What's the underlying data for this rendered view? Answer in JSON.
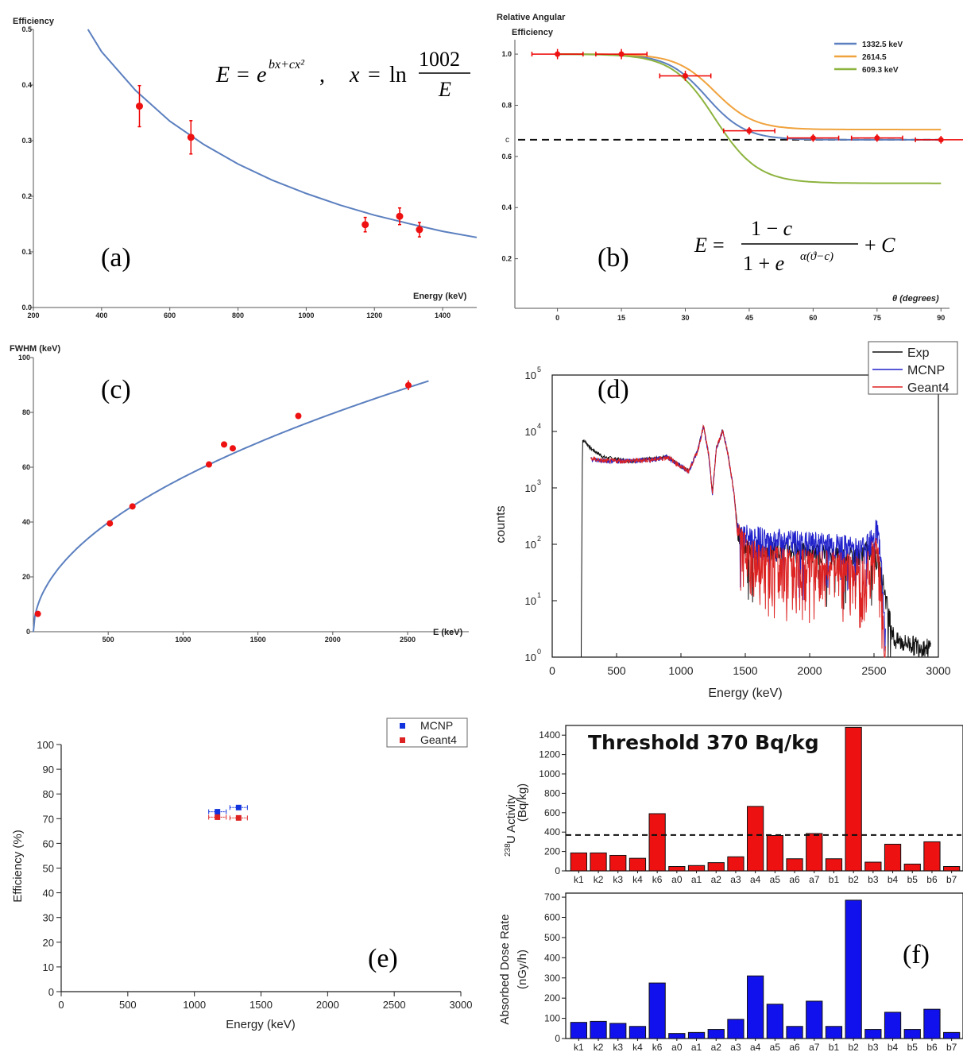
{
  "chart_data": [
    {
      "panel": "(a)",
      "type": "scatter",
      "xlabel": "Energy (keV)",
      "ylabel": "Efficiency",
      "xlim": [
        200,
        1500
      ],
      "ylim": [
        0,
        0.5
      ],
      "xticks": [
        "200",
        "400",
        "600",
        "800",
        "1000",
        "1200",
        "1400"
      ],
      "yticks": [
        "0.0",
        "0.1",
        "0.2",
        "0.3",
        "0.4",
        "0.5"
      ],
      "formula": "E = e^(bx+cx²),   x = ln (1002/E)",
      "points": [
        {
          "x": 511,
          "y": 0.362,
          "err": 0.037
        },
        {
          "x": 662,
          "y": 0.306,
          "err": 0.03
        },
        {
          "x": 1173,
          "y": 0.149,
          "err": 0.013
        },
        {
          "x": 1274,
          "y": 0.164,
          "err": 0.015
        },
        {
          "x": 1332,
          "y": 0.14,
          "err": 0.013
        }
      ],
      "fit": [
        [
          360,
          0.5
        ],
        [
          400,
          0.46
        ],
        [
          500,
          0.39
        ],
        [
          600,
          0.335
        ],
        [
          700,
          0.293
        ],
        [
          800,
          0.258
        ],
        [
          900,
          0.229
        ],
        [
          1000,
          0.205
        ],
        [
          1100,
          0.184
        ],
        [
          1200,
          0.166
        ],
        [
          1300,
          0.151
        ],
        [
          1400,
          0.137
        ],
        [
          1500,
          0.126
        ]
      ]
    },
    {
      "panel": "(b)",
      "type": "line",
      "title": "Relative Angular Efficiency",
      "title_lines": [
        "Relative Angular",
        "Efficiency"
      ],
      "xlabel": "θ (degrees)",
      "xlim": [
        -10,
        92
      ],
      "ylim": [
        0,
        1.05
      ],
      "xticks": [
        "0",
        "15",
        "30",
        "45",
        "60",
        "75",
        "90"
      ],
      "yticks": [
        "0.2",
        "0.4",
        "0.6",
        "0.8",
        "1.0"
      ],
      "c_label": "c",
      "c_value": 0.665,
      "formula_left": "E =",
      "formula_num": "1 − c",
      "formula_den": "1 + e^(α(ϑ−c))",
      "formula_right": "+ C",
      "series": [
        {
          "name": "1332.5 keV",
          "color": "#5b7fbf",
          "lo": 0.665,
          "mid": 35,
          "k": 0.22
        },
        {
          "name": "2614.5",
          "color": "#f0a23c",
          "lo": 0.705,
          "mid": 37,
          "k": 0.22
        },
        {
          "name": "609.3 keV",
          "color": "#8db33e",
          "lo": 0.495,
          "mid": 37,
          "k": 0.2
        }
      ],
      "points": [
        {
          "x": 0,
          "y": 1.0,
          "xerr": 3,
          "yerr": 0.02
        },
        {
          "x": 15,
          "y": 1.0,
          "xerr": 3,
          "yerr": 0.02
        },
        {
          "x": 30,
          "y": 0.915,
          "xerr": 3,
          "yerr": 0.02
        },
        {
          "x": 45,
          "y": 0.7,
          "xerr": 3,
          "yerr": 0.015
        },
        {
          "x": 60,
          "y": 0.672,
          "xerr": 3,
          "yerr": 0.015
        },
        {
          "x": 75,
          "y": 0.672,
          "xerr": 3,
          "yerr": 0.015
        },
        {
          "x": 90,
          "y": 0.665,
          "xerr": 3,
          "yerr": 0.015
        }
      ]
    },
    {
      "panel": "(c)",
      "type": "scatter",
      "xlabel": "E (keV)",
      "ylabel": "FWHM (keV)",
      "xlim": [
        0,
        2700
      ],
      "ylim": [
        0,
        100
      ],
      "xticks": [
        "500",
        "1000",
        "1500",
        "2000",
        "2500"
      ],
      "yticks": [
        "0",
        "20",
        "40",
        "60",
        "80",
        "100"
      ],
      "points": [
        {
          "x": 30,
          "y": 6.5
        },
        {
          "x": 511,
          "y": 39.5
        },
        {
          "x": 662,
          "y": 45.7
        },
        {
          "x": 1173,
          "y": 61.0
        },
        {
          "x": 1274,
          "y": 68.3
        },
        {
          "x": 1332,
          "y": 66.9
        },
        {
          "x": 1770,
          "y": 78.7
        },
        {
          "x": 2505,
          "y": 89.9,
          "err": 1.8
        }
      ],
      "fit_a": 1.78,
      "fit_p": 0.5,
      "fit_xmax": 2640
    },
    {
      "panel": "(d)",
      "type": "line",
      "xlabel": "Energy (keV)",
      "ylabel": "counts",
      "xlim": [
        0,
        3000
      ],
      "ylim_log": [
        1,
        100000
      ],
      "xticks": [
        "0",
        "500",
        "1000",
        "1500",
        "2000",
        "2500",
        "3000"
      ],
      "yticks": [
        "10",
        "10",
        "10",
        "10",
        "10",
        "10"
      ],
      "ytick_exp": [
        "0",
        "1",
        "2",
        "3",
        "4",
        "5"
      ],
      "legend": [
        "Exp",
        "MCNP",
        "Geant4"
      ],
      "colors": [
        "#111111",
        "#2222cc",
        "#dd2222"
      ],
      "shape": {
        "exp": [
          [
            225,
            1
          ],
          [
            235,
            7000
          ],
          [
            260,
            6500
          ],
          [
            300,
            5000
          ],
          [
            400,
            3500
          ],
          [
            600,
            3000
          ],
          [
            800,
            3300
          ],
          [
            900,
            3600
          ],
          [
            1000,
            2400
          ],
          [
            1060,
            2000
          ],
          [
            1130,
            4500
          ],
          [
            1175,
            13000
          ],
          [
            1215,
            4000
          ],
          [
            1245,
            800
          ],
          [
            1275,
            5000
          ],
          [
            1325,
            11000
          ],
          [
            1365,
            4000
          ],
          [
            1410,
            900
          ],
          [
            1440,
            200
          ],
          [
            1500,
            90
          ],
          [
            1800,
            80
          ],
          [
            2100,
            70
          ],
          [
            2300,
            60
          ],
          [
            2450,
            80
          ],
          [
            2510,
            60
          ],
          [
            2560,
            30
          ],
          [
            2620,
            5
          ],
          [
            2660,
            2
          ],
          [
            2940,
            1.5
          ]
        ],
        "sim": [
          [
            300,
            3300
          ],
          [
            400,
            3000
          ],
          [
            600,
            3000
          ],
          [
            800,
            3200
          ],
          [
            900,
            3500
          ],
          [
            1000,
            2400
          ],
          [
            1060,
            2000
          ],
          [
            1130,
            4500
          ],
          [
            1175,
            12500
          ],
          [
            1215,
            4000
          ],
          [
            1245,
            800
          ],
          [
            1275,
            5000
          ],
          [
            1325,
            10500
          ],
          [
            1365,
            4000
          ],
          [
            1410,
            900
          ],
          [
            1440,
            150
          ],
          [
            1600,
            130
          ],
          [
            1900,
            110
          ],
          [
            2200,
            100
          ],
          [
            2400,
            80
          ],
          [
            2480,
            150
          ],
          [
            2520,
            200
          ],
          [
            2550,
            80
          ],
          [
            2590,
            2
          ]
        ]
      }
    },
    {
      "panel": "(e)",
      "type": "scatter",
      "xlabel": "Energy (keV)",
      "ylabel": "Efficiency (%)",
      "xlim": [
        0,
        3000
      ],
      "ylim": [
        0,
        100
      ],
      "xticks": [
        "0",
        "500",
        "1000",
        "1500",
        "2000",
        "2500",
        "3000"
      ],
      "yticks": [
        "0",
        "10",
        "20",
        "30",
        "40",
        "50",
        "60",
        "70",
        "80",
        "90",
        "100"
      ],
      "legend": [
        "MCNP",
        "Geant4"
      ],
      "series": [
        {
          "name": "MCNP",
          "color": "#1133dd",
          "points": [
            [
              1173,
              72.8
            ],
            [
              1332,
              74.5
            ]
          ]
        },
        {
          "name": "Geant4",
          "color": "#dd2222",
          "points": [
            [
              1173,
              70.6
            ],
            [
              1332,
              70.3
            ]
          ]
        }
      ]
    },
    {
      "panel": "(f)",
      "type": "bar",
      "title": "Threshold 370 Bq/kg",
      "categories": [
        "k1",
        "k2",
        "k3",
        "k4",
        "k6",
        "a0",
        "a1",
        "a2",
        "a3",
        "a4",
        "a5",
        "a6",
        "a7",
        "b1",
        "b2",
        "b3",
        "b4",
        "b5",
        "b6",
        "b7"
      ],
      "threshold": 370,
      "top": {
        "ylabel_sup": "238",
        "ylabel_main": "U Activity",
        "ylabel_unit": "(Bq/kg)",
        "ylim": [
          0,
          1500
        ],
        "yticks": [
          "0",
          "200",
          "400",
          "600",
          "800",
          "1000",
          "1200",
          "1400"
        ],
        "color": "#ee1111",
        "values": [
          185,
          185,
          160,
          130,
          590,
          45,
          55,
          85,
          145,
          665,
          365,
          125,
          385,
          125,
          1480,
          90,
          275,
          70,
          300,
          45
        ]
      },
      "bottom": {
        "ylabel_main": "Absorbed Dose Rate",
        "ylabel_unit": "(nGy/h)",
        "ylim": [
          0,
          720
        ],
        "yticks": [
          "0",
          "100",
          "200",
          "300",
          "400",
          "500",
          "600",
          "700"
        ],
        "color": "#1111ee",
        "values": [
          80,
          85,
          75,
          60,
          275,
          25,
          30,
          45,
          95,
          310,
          170,
          60,
          185,
          60,
          685,
          45,
          130,
          45,
          145,
          30
        ]
      }
    }
  ]
}
